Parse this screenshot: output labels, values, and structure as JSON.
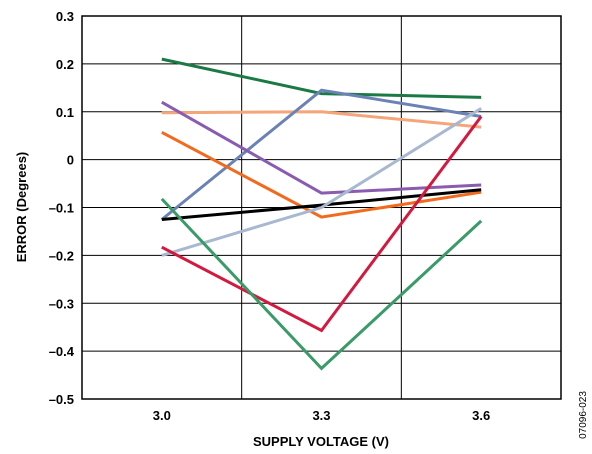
{
  "chart_data": {
    "type": "line",
    "title": "",
    "xlabel": "SUPPLY VOLTAGE (V)",
    "ylabel": "ERROR (Degrees)",
    "x": [
      3.0,
      3.3,
      3.6
    ],
    "x_tick_labels": [
      "3.0",
      "3.3",
      "3.6"
    ],
    "ylim": [
      -0.5,
      0.3
    ],
    "y_ticks": [
      0.3,
      0.2,
      0.1,
      0,
      -0.1,
      -0.2,
      -0.3,
      -0.4,
      -0.5
    ],
    "y_tick_labels": [
      "0.3",
      "0.2",
      "0.1",
      "0",
      "–0.1",
      "–0.2",
      "–0.3",
      "–0.4",
      "–0.5"
    ],
    "grid": true,
    "series": [
      {
        "color": "#1a7a45",
        "values": [
          0.21,
          0.138,
          0.13
        ]
      },
      {
        "color": "#f5a57a",
        "values": [
          0.098,
          0.1,
          0.068
        ]
      },
      {
        "color": "#6b82b5",
        "values": [
          -0.125,
          0.145,
          0.09
        ]
      },
      {
        "color": "#8a5bb0",
        "values": [
          0.12,
          -0.07,
          -0.053
        ]
      },
      {
        "color": "#f26a1c",
        "values": [
          0.057,
          -0.12,
          -0.068
        ]
      },
      {
        "color": "#000000",
        "values": [
          -0.125,
          -0.095,
          -0.063
        ]
      },
      {
        "color": "#a8b8d0",
        "values": [
          -0.2,
          -0.1,
          0.107
        ]
      },
      {
        "color": "#d4193f",
        "values": [
          -0.183,
          -0.357,
          0.09
        ]
      },
      {
        "color": "#3a9a68",
        "values": [
          -0.082,
          -0.436,
          -0.128
        ]
      }
    ]
  },
  "figure_id": "07096-023"
}
